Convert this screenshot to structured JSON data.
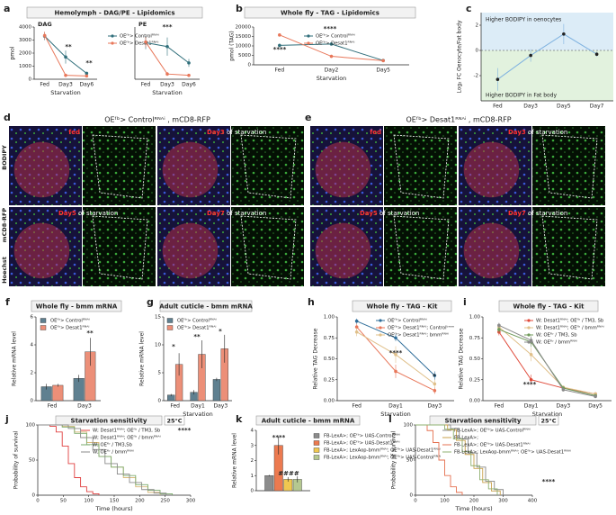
{
  "chart_data": [
    {
      "type": "line",
      "label": "a",
      "title": "Hemolymph - DAG/PE - Lipidomics",
      "subtitle": "DAG",
      "categories": [
        "Fed",
        "Day3",
        "Day6"
      ],
      "xlabel": "Starvation",
      "ylabel": "pmol",
      "ylim": [
        0,
        4000
      ],
      "yticks": [
        0,
        1000,
        2000,
        3000,
        4000
      ],
      "series": [
        {
          "name": "OEᶠᵇ> Controlᴿᴺᴬⁱ",
          "color": "#2f6e7a",
          "values": [
            3300,
            1700,
            450
          ],
          "errors": [
            300,
            500,
            80
          ]
        },
        {
          "name": "OEᶠᵇ> Desat1ᴿᴺᴬⁱ",
          "color": "#e8775a",
          "values": [
            3350,
            300,
            250
          ],
          "errors": [
            300,
            100,
            60
          ]
        }
      ],
      "annotations": [
        "**",
        "**"
      ]
    },
    {
      "type": "line",
      "subtitle": "PE",
      "categories": [
        "Fed",
        "Day3",
        "Day6"
      ],
      "xlabel": "Starvation",
      "ylim": [
        0,
        4000
      ],
      "series": [
        {
          "color": "#2f6e7a",
          "values": [
            2800,
            2500,
            1250
          ],
          "errors": [
            500,
            700,
            300
          ]
        },
        {
          "color": "#e8775a",
          "values": [
            2850,
            400,
            300
          ],
          "errors": [
            400,
            150,
            100
          ]
        }
      ],
      "annotations": [
        "***"
      ]
    },
    {
      "type": "line",
      "label": "b",
      "title": "Whole fly - TAG - Lipidomics",
      "categories": [
        "Fed",
        "Day2",
        "Day5"
      ],
      "xlabel": "Starvation",
      "ylabel": "pmol (TAG)",
      "ylim": [
        0,
        20000
      ],
      "yticks": [
        0,
        5000,
        10000,
        15000,
        20000
      ],
      "series": [
        {
          "name": "OEᶠᵇ> Controlᴿᴺᴬⁱ",
          "color": "#2f6e7a",
          "values": [
            10300,
            11000,
            2300
          ],
          "errors": [
            900,
            500,
            300
          ]
        },
        {
          "name": "OEᶠᵇ> Desat1ᴿᴺᴬⁱ",
          "color": "#e8775a",
          "values": [
            15800,
            4500,
            2200
          ],
          "errors": [
            600,
            800,
            300
          ]
        }
      ],
      "annotations": [
        "****",
        "****"
      ]
    },
    {
      "type": "line",
      "label": "c",
      "categories": [
        "Fed",
        "Day3",
        "Day5",
        "Day7"
      ],
      "ylabel": "Log₂ FC Oenocyte/Fat body",
      "ylim": [
        -4,
        3
      ],
      "yticks": [
        -2,
        0,
        2
      ],
      "series": [
        {
          "color": "#7fb2e0",
          "marker_color": "#222222",
          "values": [
            -2.3,
            -0.4,
            1.3,
            -0.3
          ],
          "errors": [
            0.9,
            0.5,
            0.8,
            0.2
          ]
        }
      ],
      "annotations": [
        "Higher BODIPY in oenocytes",
        "Higher BODIPY in Fat body"
      ]
    },
    {
      "type": "bar",
      "label": "f",
      "title": "Whole fly - bmm mRNA",
      "categories": [
        "Fed",
        "Day3"
      ],
      "ylabel": "Relative mRNA level",
      "ylim": [
        0,
        6
      ],
      "yticks": [
        0,
        2,
        4,
        6
      ],
      "series": [
        {
          "name": "OEᶠᵇ> Controlᴿᴺᴬⁱ",
          "color": "#5f8090",
          "values": [
            1.0,
            1.6
          ],
          "errors": [
            0.2,
            0.25
          ]
        },
        {
          "name": "OEᶠᵇ> Desat1ᴿᴺᴬⁱ",
          "color": "#ec8f78",
          "values": [
            1.1,
            3.5
          ],
          "errors": [
            0.1,
            1.0
          ]
        }
      ],
      "annotations": [
        "**"
      ]
    },
    {
      "type": "bar",
      "label": "g",
      "title": "Adult cuticle - bmm mRNA",
      "categories": [
        "Fed",
        "Day1",
        "Day3"
      ],
      "xlabel": "Starvation",
      "ylabel": "Relative mRNA level",
      "ylim": [
        0,
        15
      ],
      "yticks": [
        0,
        5,
        10,
        15
      ],
      "series": [
        {
          "name": "OEᶠᵇ> Controlᴿᴺᴬⁱ",
          "color": "#5f8090",
          "values": [
            1.0,
            1.5,
            3.8
          ],
          "errors": [
            0.2,
            0.4,
            0.3
          ]
        },
        {
          "name": "OEᶠᵇ> Desat1ᴿᴺᴬⁱ",
          "color": "#ec8f78",
          "values": [
            6.5,
            8.3,
            9.3
          ],
          "errors": [
            2.0,
            2.5,
            2.5
          ]
        }
      ],
      "annotations": [
        "*",
        "**",
        "*"
      ]
    },
    {
      "type": "line",
      "label": "h",
      "title": "Whole fly - TAG - Kit",
      "categories": [
        "Fed",
        "Day1",
        "Day3"
      ],
      "xlabel": "Starvation",
      "ylabel": "Relative TAG Decrease",
      "ylim": [
        0,
        1
      ],
      "yticks": [
        {
          "value": 0,
          "label": "0.00"
        },
        {
          "value": 0.25,
          "label": "0.25"
        },
        {
          "value": 0.5,
          "label": "0.50"
        },
        {
          "value": 0.75,
          "label": "0.75"
        },
        {
          "value": 1,
          "label": "1.00"
        }
      ],
      "series": [
        {
          "name": "OEᶠᵇ> Controlᴿᴺᴬⁱ",
          "color": "#2f6e9a",
          "values": [
            0.95,
            0.75,
            0.3
          ],
          "errors": [
            0.03,
            0.04,
            0.05
          ]
        },
        {
          "name": "OEᶠᵇ> Desat1ᴿᴺᴬⁱ; Controlᵇᵐᵐ",
          "color": "#e8775a",
          "values": [
            0.88,
            0.35,
            0.12
          ],
          "errors": [
            0.04,
            0.08,
            0.04
          ]
        },
        {
          "name": "OEᶠᵇ> Desat1ᴿᴺᴬⁱ; bmmᴿᴺᴬⁱ",
          "color": "#e0c08a",
          "values": [
            0.82,
            0.55,
            0.2
          ],
          "errors": [
            0.05,
            0.1,
            0.05
          ]
        }
      ],
      "annotations": [
        "****",
        "*"
      ]
    },
    {
      "type": "line",
      "label": "i",
      "title": "Whole fly - TAG - Kit",
      "categories": [
        "Fed",
        "Day1",
        "Day3",
        "Day5"
      ],
      "xlabel": "Starvation",
      "ylabel": "Relative TAG Decrease",
      "ylim": [
        0,
        1
      ],
      "yticks": [
        {
          "value": 0,
          "label": "0.00"
        },
        {
          "value": 0.25,
          "label": "0.25"
        },
        {
          "value": 0.5,
          "label": "0.50"
        },
        {
          "value": 0.75,
          "label": "0.75"
        },
        {
          "value": 1,
          "label": "1.00"
        }
      ],
      "series": [
        {
          "name": "W; Desat1ᴿᴺᴬⁱ; OEᶠᵇ / TM3, Sb",
          "color": "#e04a3a",
          "values": [
            0.82,
            0.25,
            0.15,
            0.08
          ],
          "errors": [
            0.04,
            0.06,
            0.02,
            0.02
          ]
        },
        {
          "name": "W; Desat1ᴿᴺᴬⁱ; OEᶠᵇ / bmmᴿᴺᴬⁱ",
          "color": "#e0c08a",
          "values": [
            0.88,
            0.55,
            0.16,
            0.08
          ],
          "errors": [
            0.04,
            0.08,
            0.02,
            0.02
          ]
        },
        {
          "name": "W; OEᶠᵇ / TM3, Sb",
          "color": "#6f9a5a",
          "values": [
            0.85,
            0.7,
            0.15,
            0.06
          ],
          "errors": [
            0.04,
            0.06,
            0.02,
            0.02
          ]
        },
        {
          "name": "W; OEᶠᵇ / bmmᴿᴺᴬⁱ",
          "color": "#8a8a8a",
          "values": [
            0.9,
            0.72,
            0.13,
            0.05
          ],
          "errors": [
            0.03,
            0.05,
            0.02,
            0.02
          ]
        }
      ],
      "annotations": [
        "****"
      ]
    },
    {
      "type": "step",
      "label": "j",
      "title": "Starvation sensitivity",
      "subtitle": "25°C",
      "xlabel": "Time (hours)",
      "ylabel": "Probability of survival",
      "xlim": [
        0,
        300
      ],
      "xticks": [
        0,
        50,
        100,
        150,
        200,
        250,
        300
      ],
      "ylim": [
        0,
        100
      ],
      "yticks": [
        0,
        50,
        100
      ],
      "series": [
        {
          "name": "W; Desat1ᴿᴺᴬⁱ; OEᶠᵇ / TM3, Sb",
          "color": "#e04040",
          "x": [
            0,
            24,
            36,
            48,
            60,
            72,
            84,
            96,
            108,
            120
          ],
          "values": [
            100,
            98,
            90,
            70,
            45,
            25,
            12,
            5,
            2,
            0
          ]
        },
        {
          "name": "W; Desat1ᴿᴺᴬⁱ; OEᶠᵇ / bmmᴿᴺᴬⁱ",
          "color": "#d9b97a",
          "x": [
            0,
            48,
            72,
            96,
            120,
            144,
            168,
            192,
            216,
            240
          ],
          "values": [
            100,
            98,
            90,
            75,
            55,
            40,
            25,
            12,
            4,
            0
          ]
        },
        {
          "name": "W; OEᶠᵇ / TM3,Sb",
          "color": "#7bab6c",
          "x": [
            0,
            48,
            72,
            96,
            120,
            144,
            168,
            192,
            216,
            240,
            264
          ],
          "values": [
            100,
            97,
            88,
            72,
            55,
            40,
            28,
            15,
            7,
            2,
            0
          ]
        },
        {
          "name": "W; OEᶠᵇ / bmmᴿᴺᴬⁱ",
          "color": "#8a8a8a",
          "x": [
            0,
            60,
            84,
            108,
            132,
            156,
            180,
            204,
            228,
            252
          ],
          "values": [
            100,
            95,
            82,
            65,
            45,
            30,
            18,
            8,
            3,
            0
          ]
        }
      ],
      "annotations": [
        "****"
      ]
    },
    {
      "type": "bar",
      "label": "k",
      "title": "Adult cuticle - bmm mRNA",
      "categories": [
        null
      ],
      "ylabel": "Relative mRNA level",
      "ylim": [
        0,
        4
      ],
      "yticks": [
        0,
        1,
        2,
        3,
        4
      ],
      "series": [
        {
          "name": "FB-LexA>; OEᶠᵇ> UAS-Controlᴿᴺᴬⁱ",
          "color": "#8c8c8c",
          "values": [
            1.0
          ],
          "errors": [
            0.05
          ]
        },
        {
          "name": "FB-LexA>; OEᶠᵇ> UAS-Desat1ᴿᴺᴬⁱ",
          "color": "#ec7a50",
          "values": [
            3.0
          ],
          "errors": [
            0.6
          ]
        },
        {
          "name": "FB-LexA>; LexAop-bmmᴿᴺᴬⁱ; OEᶠᵇ> UAS-Desat1ᴿᴺᴬⁱ",
          "color": "#f0c850",
          "values": [
            0.75
          ],
          "errors": [
            0.15
          ]
        },
        {
          "name": "FB-LexA>; LexAop-bmmᴿᴺᴬⁱ; OEᶠᵇ> UAS-Controlᴿᴺᴬⁱ",
          "color": "#b5c890",
          "values": [
            0.75
          ],
          "errors": [
            0.2
          ]
        }
      ],
      "annotations": [
        "****",
        "####"
      ]
    },
    {
      "type": "step",
      "label": "l",
      "title": "Starvation sensitivity",
      "subtitle": "25°C",
      "xlabel": "Time (hours)",
      "ylabel": "Probability of survival",
      "xlim": [
        0,
        400
      ],
      "xticks": [
        0,
        100,
        200,
        300,
        400
      ],
      "ylim": [
        0,
        100
      ],
      "yticks": [
        0,
        50,
        100
      ],
      "series": [
        {
          "name": "FB-LexA>; OEᶠᵇ> UAS-Controlᴿᴺᴬⁱ",
          "color": "#888888",
          "x": [
            0,
            120,
            150,
            180,
            210,
            240,
            270,
            300
          ],
          "values": [
            100,
            95,
            80,
            60,
            40,
            20,
            8,
            0
          ]
        },
        {
          "name": "FB-LexA>;",
          "color": "#c9a04b",
          "x": [
            0,
            110,
            140,
            170,
            200,
            230,
            260,
            290
          ],
          "values": [
            100,
            93,
            78,
            58,
            38,
            18,
            6,
            0
          ]
        },
        {
          "name": "FB-LexA>; OEᶠᵇ> UAS-Desat1ᴿᴺᴬⁱ",
          "color": "#e57050",
          "x": [
            0,
            40,
            60,
            80,
            100,
            120,
            140,
            160
          ],
          "values": [
            100,
            92,
            75,
            50,
            28,
            12,
            4,
            0
          ]
        },
        {
          "name": "FB-LexA>; LexAop-bmmᴿᴺᴬⁱ; OEᶠᵇ> UAS-Desat1ᴿᴺᴬⁱ",
          "color": "#8fb070",
          "x": [
            0,
            100,
            130,
            160,
            190,
            220,
            250,
            280
          ],
          "values": [
            100,
            94,
            80,
            62,
            42,
            22,
            9,
            0
          ]
        }
      ],
      "annotations": [
        "****"
      ]
    }
  ],
  "microscopy": [
    {
      "label": "d",
      "header": "OEᶠᵇ> Controlᴿᴺᴬⁱ , mCD8-RFP",
      "captions": [
        {
          "day": "fed"
        },
        {
          "day": "Day3",
          "text": "of starvation"
        },
        {
          "day": "Day5",
          "text": "of starvation"
        },
        {
          "day": "Day7",
          "text": "of starvation"
        }
      ]
    },
    {
      "label": "e",
      "header": "OEᶠᵇ> Desat1ᴿᴺᴬⁱ , mCD8-RFP",
      "captions": [
        {
          "day": "fed"
        },
        {
          "day": "Day3",
          "text": "of starvation"
        },
        {
          "day": "Day5",
          "text": "of starvation"
        },
        {
          "day": "Day7",
          "text": "of starvation"
        }
      ]
    }
  ],
  "channels": [
    "BODIPY",
    "mCD8-RFP",
    "Hoechst"
  ]
}
